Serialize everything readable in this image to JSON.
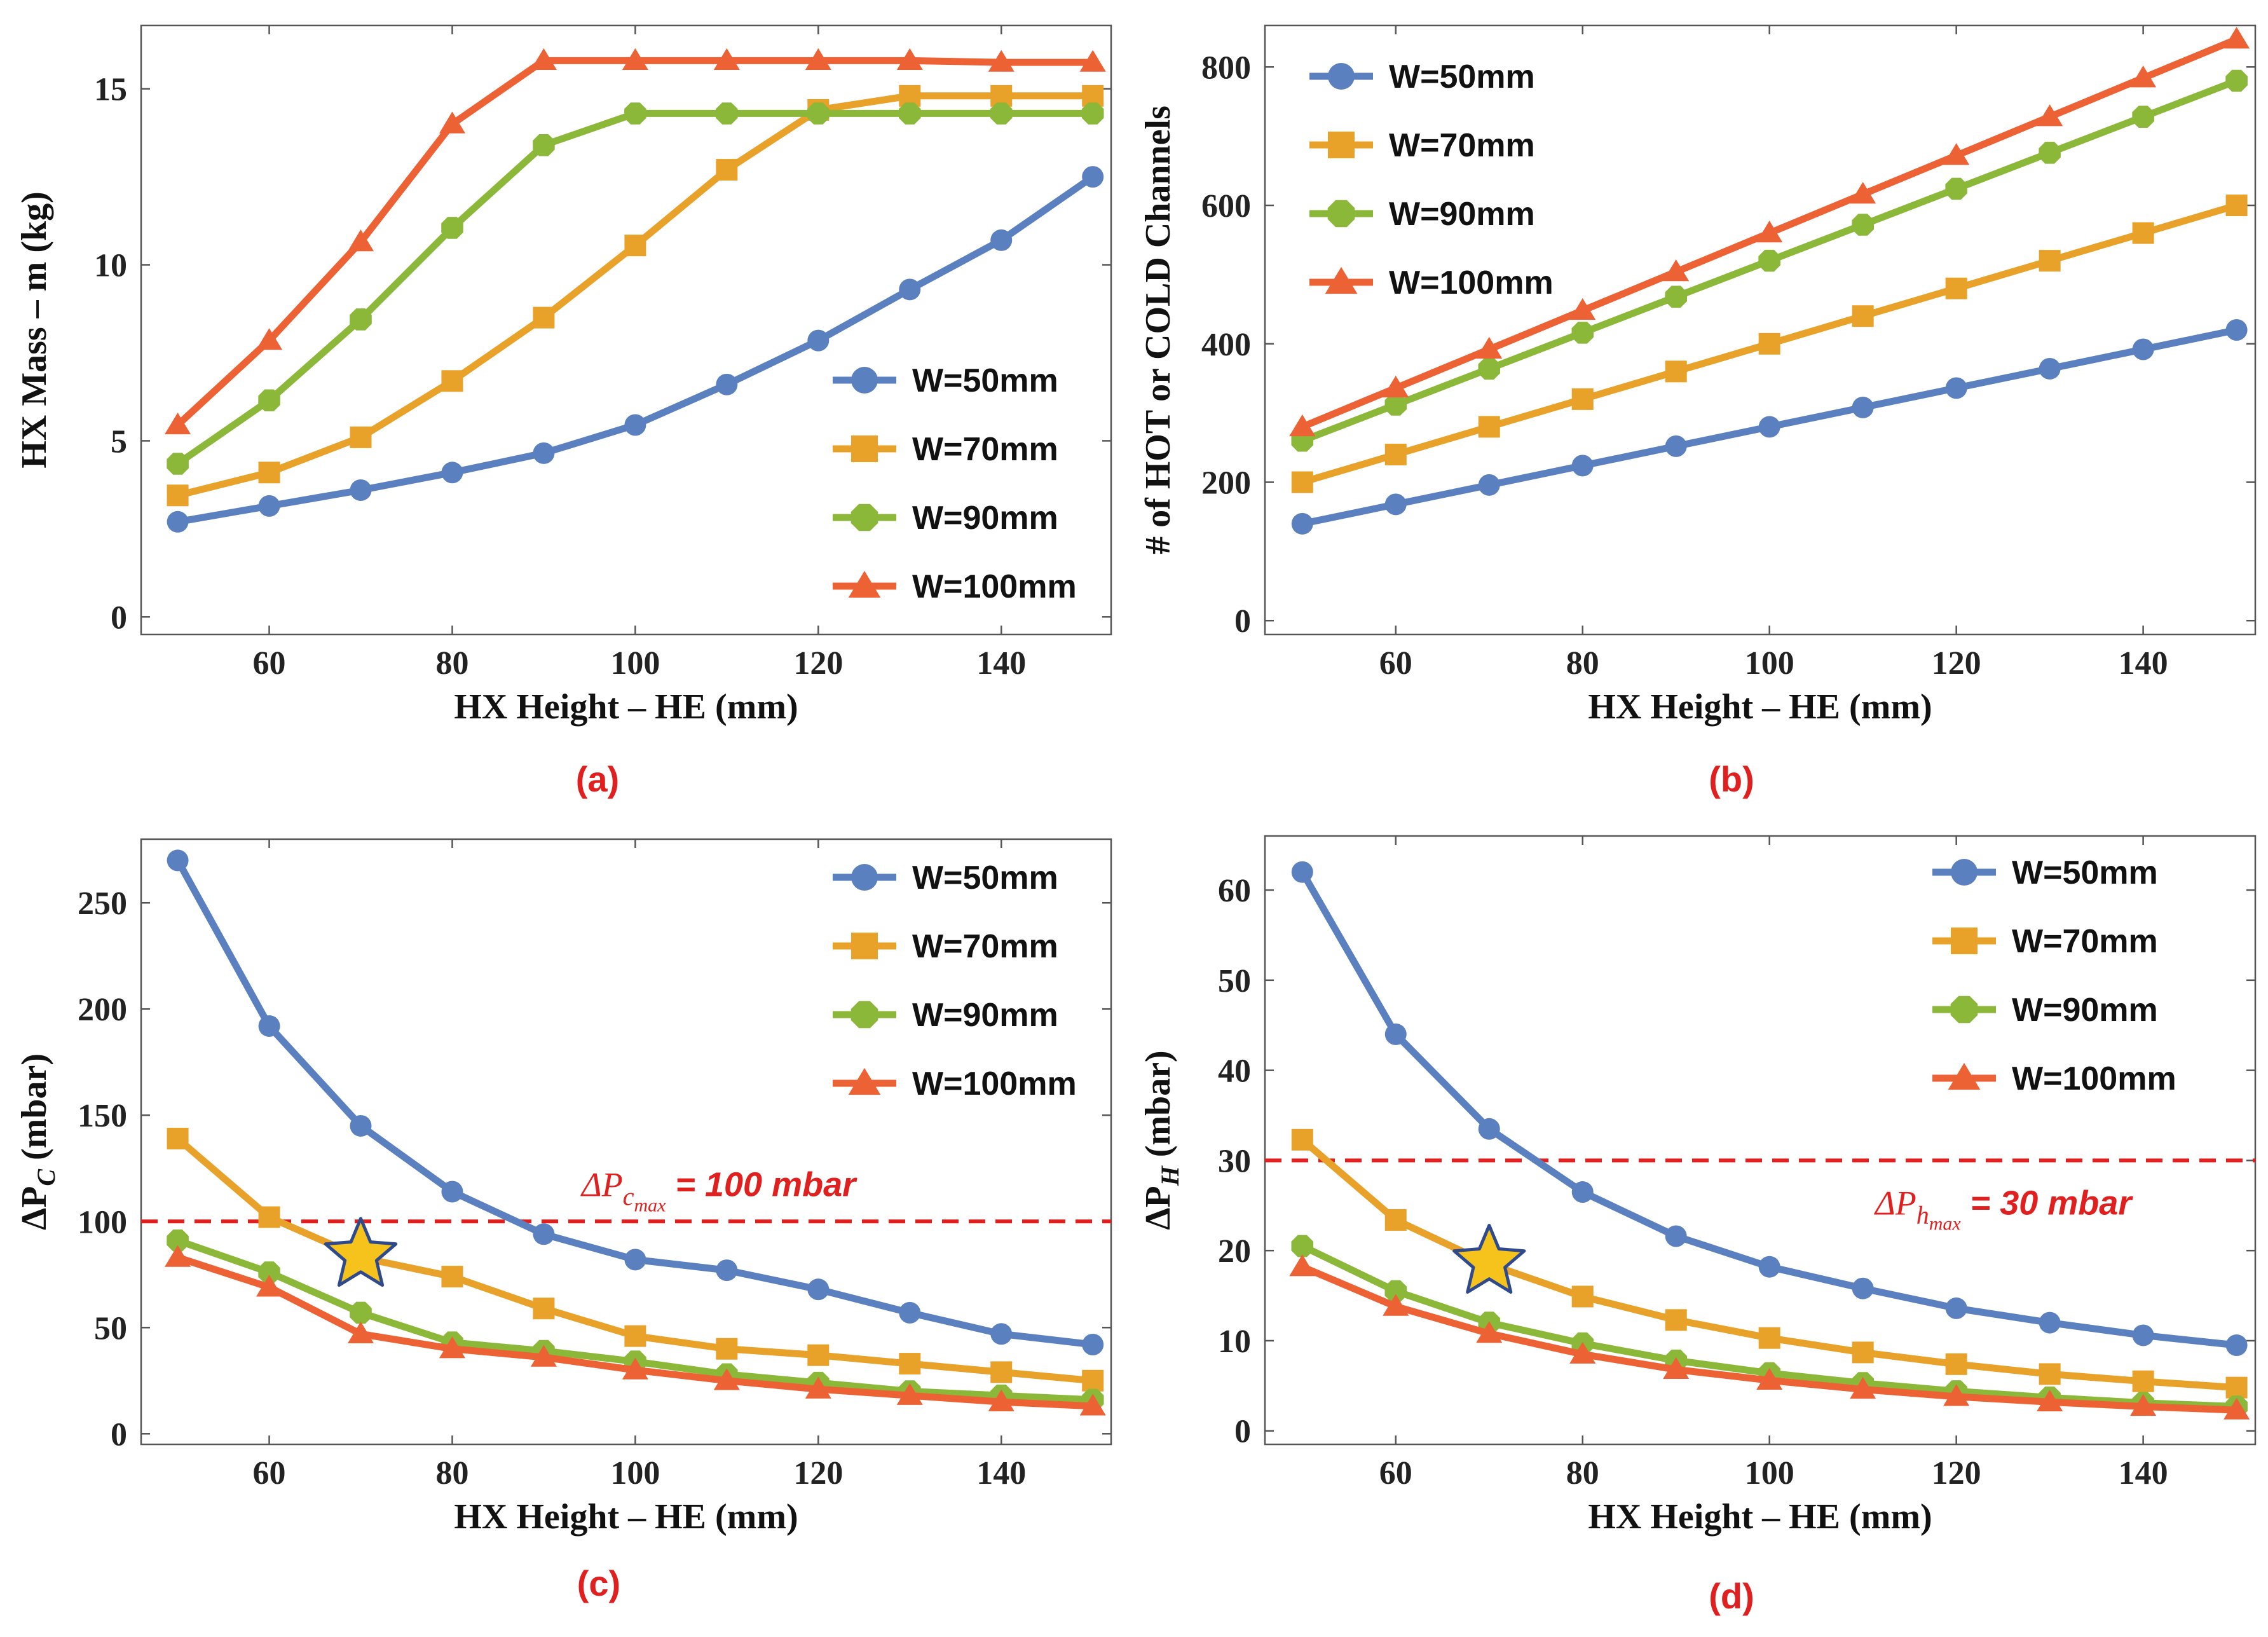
{
  "figure": {
    "panels": [
      {
        "id": "a",
        "label": "(a)"
      },
      {
        "id": "b",
        "label": "(b)"
      },
      {
        "id": "c",
        "label": "(c)"
      },
      {
        "id": "d",
        "label": "(d)"
      }
    ]
  },
  "colors": {
    "W=50mm": "#5b80c0",
    "W=70mm": "#e8a22a",
    "W=90mm": "#8cb83a",
    "W=100mm": "#ec6234",
    "threshold": "#e0201e",
    "star_fill": "#f6c21c",
    "star_stroke": "#2e4a8c"
  },
  "chart_data": [
    {
      "id": "a",
      "type": "line",
      "title": "",
      "panel_label": "(a)",
      "xlabel": "HX Height – HE (mm)",
      "ylabel": "HX Mass – m (kg)",
      "xlim": [
        46,
        152
      ],
      "ylim": [
        -0.5,
        16.8
      ],
      "xticks": [
        60,
        80,
        100,
        120,
        140
      ],
      "yticks": [
        0,
        5,
        10,
        15
      ],
      "legend_position": "bottom-right",
      "x": [
        50,
        60,
        70,
        80,
        90,
        100,
        110,
        120,
        130,
        140,
        150
      ],
      "series": [
        {
          "name": "W=50mm",
          "marker": "circle",
          "values": [
            2.7,
            3.15,
            3.6,
            4.1,
            4.65,
            5.45,
            6.6,
            7.85,
            9.3,
            10.7,
            12.5
          ]
        },
        {
          "name": "W=70mm",
          "marker": "square",
          "values": [
            3.45,
            4.1,
            5.1,
            6.7,
            8.5,
            10.55,
            12.7,
            14.4,
            14.8,
            14.8,
            14.8
          ]
        },
        {
          "name": "W=90mm",
          "marker": "diamond",
          "values": [
            4.35,
            6.15,
            8.45,
            11.05,
            13.4,
            14.3,
            14.3,
            14.3,
            14.3,
            14.3,
            14.3
          ]
        },
        {
          "name": "W=100mm",
          "marker": "triangle",
          "values": [
            5.45,
            7.85,
            10.65,
            14.0,
            15.8,
            15.8,
            15.8,
            15.8,
            15.8,
            15.75,
            15.75
          ]
        }
      ]
    },
    {
      "id": "b",
      "type": "line",
      "title": "",
      "panel_label": "(b)",
      "xlabel": "HX Height – HE (mm)",
      "ylabel": "# of HOT or COLD Channels",
      "xlim": [
        46,
        152
      ],
      "ylim": [
        -20,
        860
      ],
      "xticks": [
        60,
        80,
        100,
        120,
        140
      ],
      "yticks": [
        0,
        200,
        400,
        600,
        800
      ],
      "legend_position": "top-left",
      "x": [
        50,
        60,
        70,
        80,
        90,
        100,
        110,
        120,
        130,
        140,
        150
      ],
      "series": [
        {
          "name": "W=50mm",
          "marker": "circle",
          "values": [
            140,
            168,
            196,
            224,
            252,
            280,
            308,
            336,
            364,
            392,
            420
          ]
        },
        {
          "name": "W=70mm",
          "marker": "square",
          "values": [
            200,
            240,
            280,
            320,
            360,
            400,
            440,
            480,
            520,
            560,
            600
          ]
        },
        {
          "name": "W=90mm",
          "marker": "diamond",
          "values": [
            260,
            312,
            364,
            416,
            468,
            520,
            572,
            624,
            676,
            728,
            780
          ]
        },
        {
          "name": "W=100mm",
          "marker": "triangle",
          "values": [
            280,
            336,
            392,
            448,
            504,
            560,
            616,
            672,
            728,
            784,
            840
          ]
        }
      ]
    },
    {
      "id": "c",
      "type": "line",
      "title": "",
      "panel_label": "(c)",
      "xlabel": "HX Height – HE (mm)",
      "ylabel": "ΔP",
      "ylabel_sub": "C",
      "ylabel_suffix": " (mbar)",
      "xlim": [
        46,
        152
      ],
      "ylim": [
        -5,
        280
      ],
      "xticks": [
        60,
        80,
        100,
        120,
        140
      ],
      "yticks": [
        0,
        50,
        100,
        150,
        200,
        250
      ],
      "legend_position": "top-right",
      "x": [
        50,
        60,
        70,
        80,
        90,
        100,
        110,
        120,
        130,
        140,
        150
      ],
      "series": [
        {
          "name": "W=50mm",
          "marker": "circle",
          "values": [
            270,
            192,
            145,
            114,
            94,
            82,
            77,
            68,
            57,
            47,
            42
          ]
        },
        {
          "name": "W=70mm",
          "marker": "square",
          "values": [
            139,
            102,
            83,
            74,
            59,
            46,
            40,
            37,
            33,
            29,
            25
          ]
        },
        {
          "name": "W=90mm",
          "marker": "diamond",
          "values": [
            91,
            76,
            57,
            43,
            39,
            34,
            28,
            24,
            20,
            18,
            16
          ]
        },
        {
          "name": "W=100mm",
          "marker": "triangle",
          "values": [
            83,
            69,
            47,
            40,
            36,
            30,
            25,
            21,
            18,
            15,
            13
          ]
        }
      ],
      "threshold": {
        "value": 100,
        "label_math": "ΔP",
        "label_sub": "c",
        "label_subsub": "max",
        "label_rest": " = 100 mbar"
      },
      "star": {
        "x": 70,
        "y": 84
      }
    },
    {
      "id": "d",
      "type": "line",
      "title": "",
      "panel_label": "(d)",
      "xlabel": "HX Height – HE (mm)",
      "ylabel": "ΔP",
      "ylabel_sub": "H",
      "ylabel_suffix": " (mbar)",
      "xlim": [
        46,
        152
      ],
      "ylim": [
        -1.5,
        66
      ],
      "xticks": [
        60,
        80,
        100,
        120,
        140
      ],
      "yticks": [
        0,
        10,
        20,
        30,
        40,
        50,
        60
      ],
      "legend_position": "top-right",
      "x": [
        50,
        60,
        70,
        80,
        90,
        100,
        110,
        120,
        130,
        140,
        150
      ],
      "series": [
        {
          "name": "W=50mm",
          "marker": "circle",
          "values": [
            62,
            44,
            33.5,
            26.5,
            21.6,
            18.2,
            15.8,
            13.6,
            12.0,
            10.6,
            9.5
          ]
        },
        {
          "name": "W=70mm",
          "marker": "square",
          "values": [
            32.3,
            23.4,
            18.5,
            14.9,
            12.3,
            10.3,
            8.7,
            7.4,
            6.3,
            5.5,
            4.8
          ]
        },
        {
          "name": "W=90mm",
          "marker": "diamond",
          "values": [
            20.5,
            15.5,
            12.0,
            9.7,
            7.8,
            6.4,
            5.3,
            4.4,
            3.7,
            3.1,
            2.7
          ]
        },
        {
          "name": "W=100mm",
          "marker": "triangle",
          "values": [
            18.2,
            13.8,
            10.8,
            8.5,
            6.8,
            5.6,
            4.6,
            3.8,
            3.2,
            2.7,
            2.3
          ]
        }
      ],
      "threshold": {
        "value": 30,
        "label_math": "ΔP",
        "label_sub": "h",
        "label_subsub": "max",
        "label_rest": " = 30 mbar"
      },
      "star": {
        "x": 70,
        "y": 18.7
      }
    }
  ]
}
